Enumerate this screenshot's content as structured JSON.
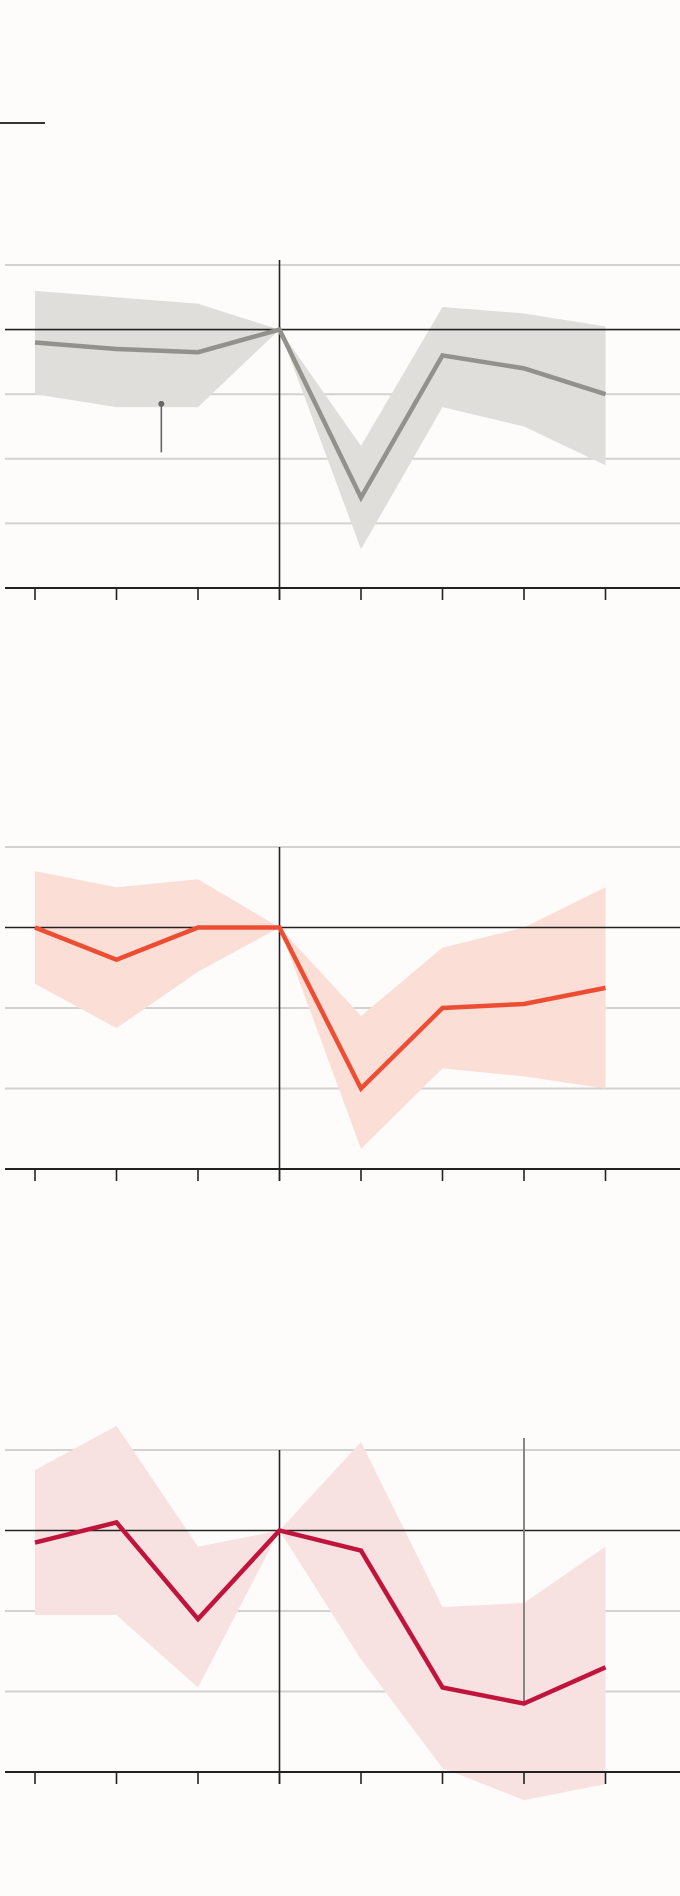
{
  "colors": {
    "gridline": "#d2d2d0",
    "axis": "#222222",
    "annotation": "#666666"
  },
  "chart_data": [
    {
      "type": "line",
      "x": [
        -3,
        -2,
        -1,
        0,
        1,
        2,
        3,
        4
      ],
      "series": [
        {
          "values": [
            -0.2,
            -0.3,
            -0.35,
            0,
            -2.6,
            -0.4,
            -0.6,
            -1.0
          ],
          "band_upper": [
            0.6,
            0.5,
            0.4,
            0,
            -1.8,
            0.35,
            0.25,
            0.05
          ],
          "band_lower": [
            -1.0,
            -1.2,
            -1.2,
            0,
            -3.4,
            -1.2,
            -1.5,
            -2.1
          ],
          "line_color": "#93918c",
          "band_color": "#dfdeda"
        }
      ],
      "ylim": [
        -4,
        1
      ],
      "xlim": [
        -3.4,
        5
      ],
      "grid": true,
      "reference_lines": {
        "x": 0,
        "y": 0
      },
      "annotation": {
        "x": -1.45,
        "y_from": -1.15,
        "y_to": -1.9
      }
    },
    {
      "type": "line",
      "x": [
        -3,
        -2,
        -1,
        0,
        1,
        2,
        3,
        4
      ],
      "series": [
        {
          "values": [
            0,
            -0.4,
            0,
            0,
            -2.0,
            -1.0,
            -0.95,
            -0.75
          ],
          "band_upper": [
            0.7,
            0.5,
            0.6,
            0,
            -1.1,
            -0.25,
            0,
            0.5
          ],
          "band_lower": [
            -0.7,
            -1.25,
            -0.55,
            0,
            -2.75,
            -1.75,
            -1.85,
            -2.0
          ],
          "line_color": "#ed4e33",
          "band_color": "#fbded6"
        }
      ],
      "ylim": [
        -3,
        1
      ],
      "xlim": [
        -3.4,
        5
      ],
      "grid": true,
      "reference_lines": {
        "x": 0,
        "y": 0
      }
    },
    {
      "type": "line",
      "x": [
        -3,
        -2,
        -1,
        0,
        1,
        2,
        3,
        4
      ],
      "series": [
        {
          "values": [
            -0.15,
            0.1,
            -1.1,
            0,
            -0.25,
            -1.95,
            -2.15,
            -1.7
          ],
          "band_upper": [
            0.75,
            1.3,
            -0.2,
            0,
            1.1,
            -0.95,
            -0.9,
            -0.2
          ],
          "band_lower": [
            -1.05,
            -1.05,
            -1.95,
            0,
            -1.6,
            -2.95,
            -3.35,
            -3.15
          ],
          "line_color": "#c0143c",
          "band_color": "#f8e1e1"
        }
      ],
      "ylim": [
        -3,
        1
      ],
      "xlim": [
        -3.4,
        5
      ],
      "grid": true,
      "reference_lines": {
        "x": 0,
        "y": 0
      },
      "marker_line": {
        "x": 3
      }
    }
  ]
}
